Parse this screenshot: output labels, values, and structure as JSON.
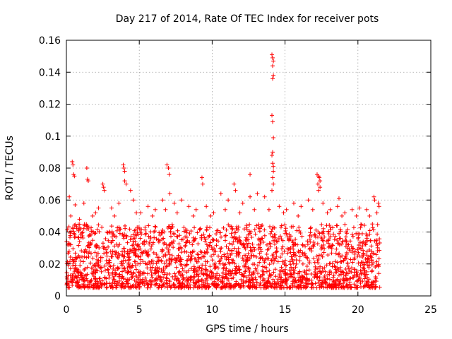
{
  "chart_data": {
    "type": "scatter",
    "title": "Day 217 of 2014, Rate Of TEC Index for receiver pots",
    "xlabel": "GPS time / hours",
    "ylabel": "ROTI / TECUs",
    "xlim": [
      0,
      25
    ],
    "ylim": [
      0,
      0.16
    ],
    "x_ticks": [
      0,
      5,
      10,
      15,
      20,
      25
    ],
    "x_tick_labels": [
      "0",
      "5",
      "10",
      "15",
      "20",
      "25"
    ],
    "y_ticks": [
      0,
      0.02,
      0.04,
      0.06,
      0.08,
      0.1,
      0.12,
      0.14,
      0.16
    ],
    "y_tick_labels": [
      "0",
      "0.02",
      "0.04",
      "0.06",
      "0.08",
      "0.1",
      "0.12",
      "0.14",
      "0.16"
    ],
    "grid": true,
    "marker": "+",
    "color": "#ff0000",
    "series": [
      {
        "name": "ROTI",
        "dense_band": {
          "x_range": [
            0,
            21.5
          ],
          "y_range": [
            0.005,
            0.045
          ],
          "count": 2200
        },
        "points": [
          [
            0.4,
            0.084
          ],
          [
            0.45,
            0.082
          ],
          [
            0.5,
            0.076
          ],
          [
            0.55,
            0.075
          ],
          [
            1.4,
            0.08
          ],
          [
            1.45,
            0.073
          ],
          [
            1.5,
            0.072
          ],
          [
            2.5,
            0.07
          ],
          [
            2.55,
            0.068
          ],
          [
            2.6,
            0.066
          ],
          [
            3.9,
            0.082
          ],
          [
            3.95,
            0.08
          ],
          [
            4.0,
            0.078
          ],
          [
            4.0,
            0.072
          ],
          [
            4.1,
            0.07
          ],
          [
            6.9,
            0.082
          ],
          [
            7.0,
            0.08
          ],
          [
            7.05,
            0.076
          ],
          [
            7.1,
            0.064
          ],
          [
            9.3,
            0.074
          ],
          [
            9.35,
            0.07
          ],
          [
            11.5,
            0.07
          ],
          [
            12.6,
            0.076
          ],
          [
            14.1,
            0.151
          ],
          [
            14.15,
            0.149
          ],
          [
            14.2,
            0.147
          ],
          [
            14.15,
            0.144
          ],
          [
            14.2,
            0.138
          ],
          [
            14.15,
            0.136
          ],
          [
            14.1,
            0.113
          ],
          [
            14.15,
            0.109
          ],
          [
            14.2,
            0.099
          ],
          [
            14.15,
            0.09
          ],
          [
            14.1,
            0.088
          ],
          [
            14.15,
            0.083
          ],
          [
            14.2,
            0.081
          ],
          [
            14.2,
            0.078
          ],
          [
            14.15,
            0.074
          ],
          [
            14.2,
            0.07
          ],
          [
            14.1,
            0.066
          ],
          [
            17.2,
            0.076
          ],
          [
            17.3,
            0.075
          ],
          [
            17.35,
            0.074
          ],
          [
            17.4,
            0.072
          ],
          [
            17.25,
            0.07
          ],
          [
            17.4,
            0.068
          ],
          [
            17.3,
            0.066
          ],
          [
            18.7,
            0.061
          ],
          [
            21.1,
            0.062
          ],
          [
            21.15,
            0.06
          ],
          [
            0.2,
            0.062
          ],
          [
            0.6,
            0.057
          ],
          [
            1.2,
            0.058
          ],
          [
            1.8,
            0.05
          ],
          [
            2.2,
            0.055
          ],
          [
            3.1,
            0.055
          ],
          [
            3.6,
            0.058
          ],
          [
            4.4,
            0.066
          ],
          [
            4.6,
            0.06
          ],
          [
            5.1,
            0.052
          ],
          [
            5.6,
            0.056
          ],
          [
            6.1,
            0.054
          ],
          [
            6.6,
            0.06
          ],
          [
            7.4,
            0.058
          ],
          [
            7.9,
            0.06
          ],
          [
            8.4,
            0.056
          ],
          [
            8.9,
            0.054
          ],
          [
            9.6,
            0.056
          ],
          [
            10.1,
            0.052
          ],
          [
            10.6,
            0.064
          ],
          [
            11.1,
            0.06
          ],
          [
            11.6,
            0.066
          ],
          [
            12.1,
            0.058
          ],
          [
            12.6,
            0.062
          ],
          [
            13.1,
            0.064
          ],
          [
            13.6,
            0.062
          ],
          [
            14.6,
            0.056
          ],
          [
            15.1,
            0.054
          ],
          [
            15.6,
            0.058
          ],
          [
            16.1,
            0.056
          ],
          [
            16.6,
            0.06
          ],
          [
            17.6,
            0.058
          ],
          [
            18.1,
            0.054
          ],
          [
            18.6,
            0.056
          ],
          [
            19.1,
            0.052
          ],
          [
            19.6,
            0.054
          ],
          [
            20.1,
            0.055
          ],
          [
            20.6,
            0.054
          ],
          [
            21.4,
            0.058
          ],
          [
            21.45,
            0.056
          ],
          [
            0.3,
            0.05
          ],
          [
            0.9,
            0.048
          ],
          [
            2.0,
            0.052
          ],
          [
            3.3,
            0.05
          ],
          [
            4.8,
            0.052
          ],
          [
            5.9,
            0.05
          ],
          [
            6.8,
            0.054
          ],
          [
            7.6,
            0.052
          ],
          [
            8.7,
            0.05
          ],
          [
            9.9,
            0.05
          ],
          [
            10.9,
            0.054
          ],
          [
            11.9,
            0.052
          ],
          [
            12.9,
            0.054
          ],
          [
            13.9,
            0.054
          ],
          [
            14.9,
            0.052
          ],
          [
            15.9,
            0.05
          ],
          [
            16.9,
            0.054
          ],
          [
            17.9,
            0.052
          ],
          [
            18.9,
            0.05
          ],
          [
            19.9,
            0.05
          ],
          [
            20.8,
            0.05
          ],
          [
            21.3,
            0.052
          ]
        ]
      }
    ]
  }
}
